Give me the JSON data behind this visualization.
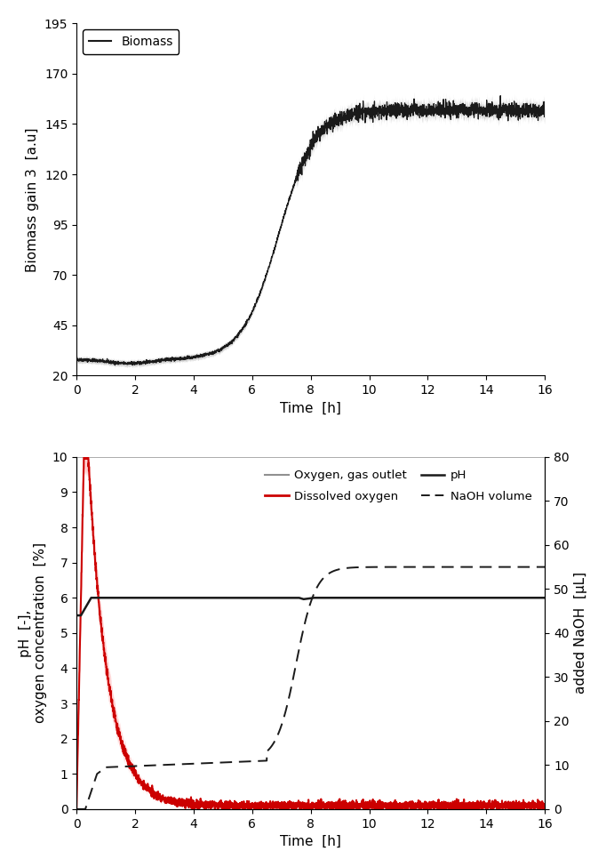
{
  "fig_width": 6.82,
  "fig_height": 9.75,
  "dpi": 100,
  "top_panel": {
    "xlim": [
      0,
      16
    ],
    "ylim": [
      20,
      195
    ],
    "yticks": [
      20,
      45,
      70,
      95,
      120,
      145,
      170,
      195
    ],
    "xticks": [
      0,
      2,
      4,
      6,
      8,
      10,
      12,
      14,
      16
    ],
    "xlabel": "Time  [h]",
    "ylabel": "Biomass gain 3  [a.u]",
    "legend_label": "Biomass",
    "biomass_color": "#1a1a1a",
    "biomass_shade_color": "#b0b0b0"
  },
  "bottom_panel": {
    "xlim": [
      0,
      16
    ],
    "ylim_left": [
      0,
      10
    ],
    "ylim_right": [
      0,
      80
    ],
    "yticks_left": [
      0,
      1,
      2,
      3,
      4,
      5,
      6,
      7,
      8,
      9,
      10
    ],
    "yticks_right": [
      0,
      10,
      20,
      30,
      40,
      50,
      60,
      70,
      80
    ],
    "xticks": [
      0,
      2,
      4,
      6,
      8,
      10,
      12,
      14,
      16
    ],
    "xlabel": "Time  [h]",
    "ylabel_left": "pH  [-],\noxygen concentration  [%]",
    "ylabel_right": "added NaOH  [µL]",
    "o2_gas_color": "#909090",
    "do_color": "#cc0000",
    "do_shade_color": "#ffaaaa",
    "ph_color": "#1a1a1a",
    "naoh_color": "#1a1a1a"
  }
}
